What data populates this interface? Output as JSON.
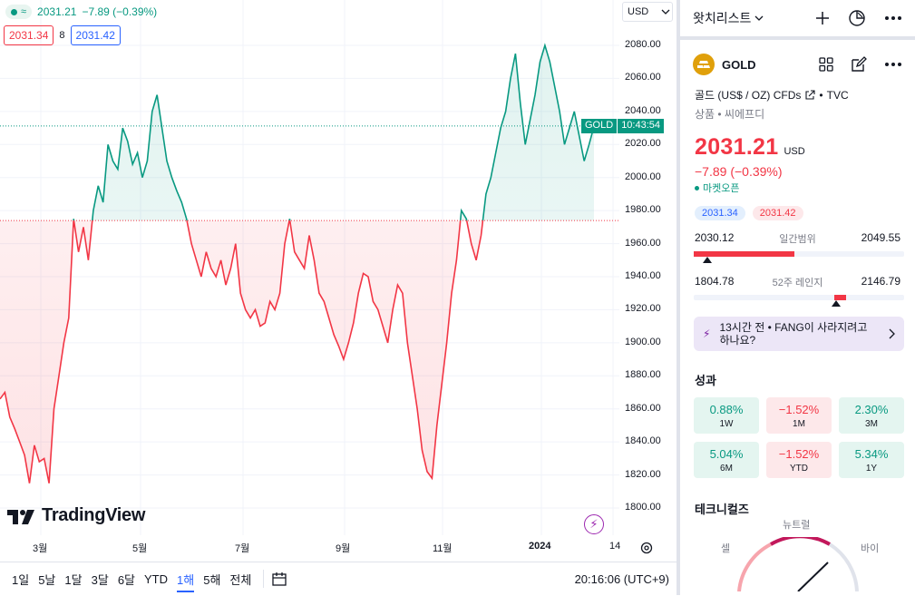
{
  "legend": {
    "price": "2031.21",
    "change": "−7.89 (−0.39%)",
    "bid": "2031.34",
    "spread": "8",
    "ask": "2031.42"
  },
  "currency": "USD",
  "symbol_tag": "GOLD",
  "countdown": "10:43:54",
  "brand": "TradingView",
  "chart_data": {
    "type": "line",
    "title": "",
    "y_axis_ticks": [
      "2080.00",
      "2060.00",
      "2040.00",
      "2020.00",
      "2000.00",
      "1980.00",
      "1960.00",
      "1940.00",
      "1920.00",
      "1900.00",
      "1880.00",
      "1860.00",
      "1840.00",
      "1820.00",
      "1800.00"
    ],
    "x_axis_ticks": [
      "3월",
      "5월",
      "7월",
      "9월",
      "11월",
      "2024",
      "14"
    ],
    "ylim": [
      1800,
      2090
    ],
    "baseline": 1974,
    "last_price": 2031.21,
    "series": [
      {
        "values": [
          1866,
          1870,
          1855,
          1848,
          1840,
          1832,
          1815,
          1838,
          1828,
          1830,
          1815,
          1860,
          1880,
          1900,
          1915,
          1975,
          1955,
          1970,
          1950,
          1980,
          1995,
          1985,
          2020,
          2010,
          2005,
          2030,
          2022,
          2008,
          2015,
          2000,
          2010,
          2040,
          2050,
          2030,
          2010,
          2000,
          1992,
          1985,
          1975,
          1960,
          1950,
          1940,
          1955,
          1945,
          1940,
          1950,
          1935,
          1945,
          1960,
          1930,
          1920,
          1915,
          1920,
          1910,
          1912,
          1925,
          1920,
          1930,
          1960,
          1975,
          1955,
          1950,
          1945,
          1965,
          1950,
          1930,
          1925,
          1915,
          1905,
          1898,
          1890,
          1900,
          1912,
          1930,
          1942,
          1940,
          1925,
          1920,
          1910,
          1900,
          1920,
          1935,
          1930,
          1900,
          1880,
          1860,
          1835,
          1822,
          1818,
          1850,
          1875,
          1900,
          1930,
          1950,
          1980,
          1975,
          1960,
          1950,
          1965,
          1990,
          2000,
          2015,
          2030,
          2040,
          2060,
          2075,
          2045,
          2020,
          2035,
          2050,
          2070,
          2080,
          2070,
          2055,
          2040,
          2020,
          2030,
          2040,
          2025,
          2010,
          2020,
          2031
        ]
      }
    ]
  },
  "ranges": [
    "1일",
    "5날",
    "1달",
    "3달",
    "6달",
    "YTD",
    "1해",
    "5해",
    "전체"
  ],
  "active_range": "1해",
  "clock": "20:16:06 (UTC+9)",
  "sidebar": {
    "watchlist_title": "왓치리스트",
    "symbol": "GOLD",
    "description": "골드 (US$ / OZ) CFDs",
    "source": "TVC",
    "category_line": "상품 • 씨에프디",
    "price": "2031.21",
    "currency": "USD",
    "change": "−7.89 (−0.39%)",
    "market_status": "마켓오픈",
    "bid": "2031.34",
    "ask": "2031.42",
    "day_low": "2030.12",
    "day_range_label": "일간범위",
    "day_high": "2049.55",
    "year_low": "1804.78",
    "year_range_label": "52주 레인지",
    "year_high": "2146.79",
    "news_time": "13시간 전",
    "news_text": "FANG이 사라지려고 하나요?",
    "performance_title": "성과",
    "performance": [
      {
        "value": "0.88%",
        "label": "1W",
        "dir": "up"
      },
      {
        "value": "−1.52%",
        "label": "1M",
        "dir": "down"
      },
      {
        "value": "2.30%",
        "label": "3M",
        "dir": "up"
      },
      {
        "value": "5.04%",
        "label": "6M",
        "dir": "up"
      },
      {
        "value": "−1.52%",
        "label": "YTD",
        "dir": "down"
      },
      {
        "value": "5.34%",
        "label": "1Y",
        "dir": "up"
      }
    ],
    "technicals_title": "테크니컬즈",
    "gauge_neutral": "뉴트럴",
    "gauge_sell": "셀",
    "gauge_buy": "바이"
  },
  "colors": {
    "up": "#089981",
    "down": "#f23645",
    "accent": "#2962ff"
  }
}
